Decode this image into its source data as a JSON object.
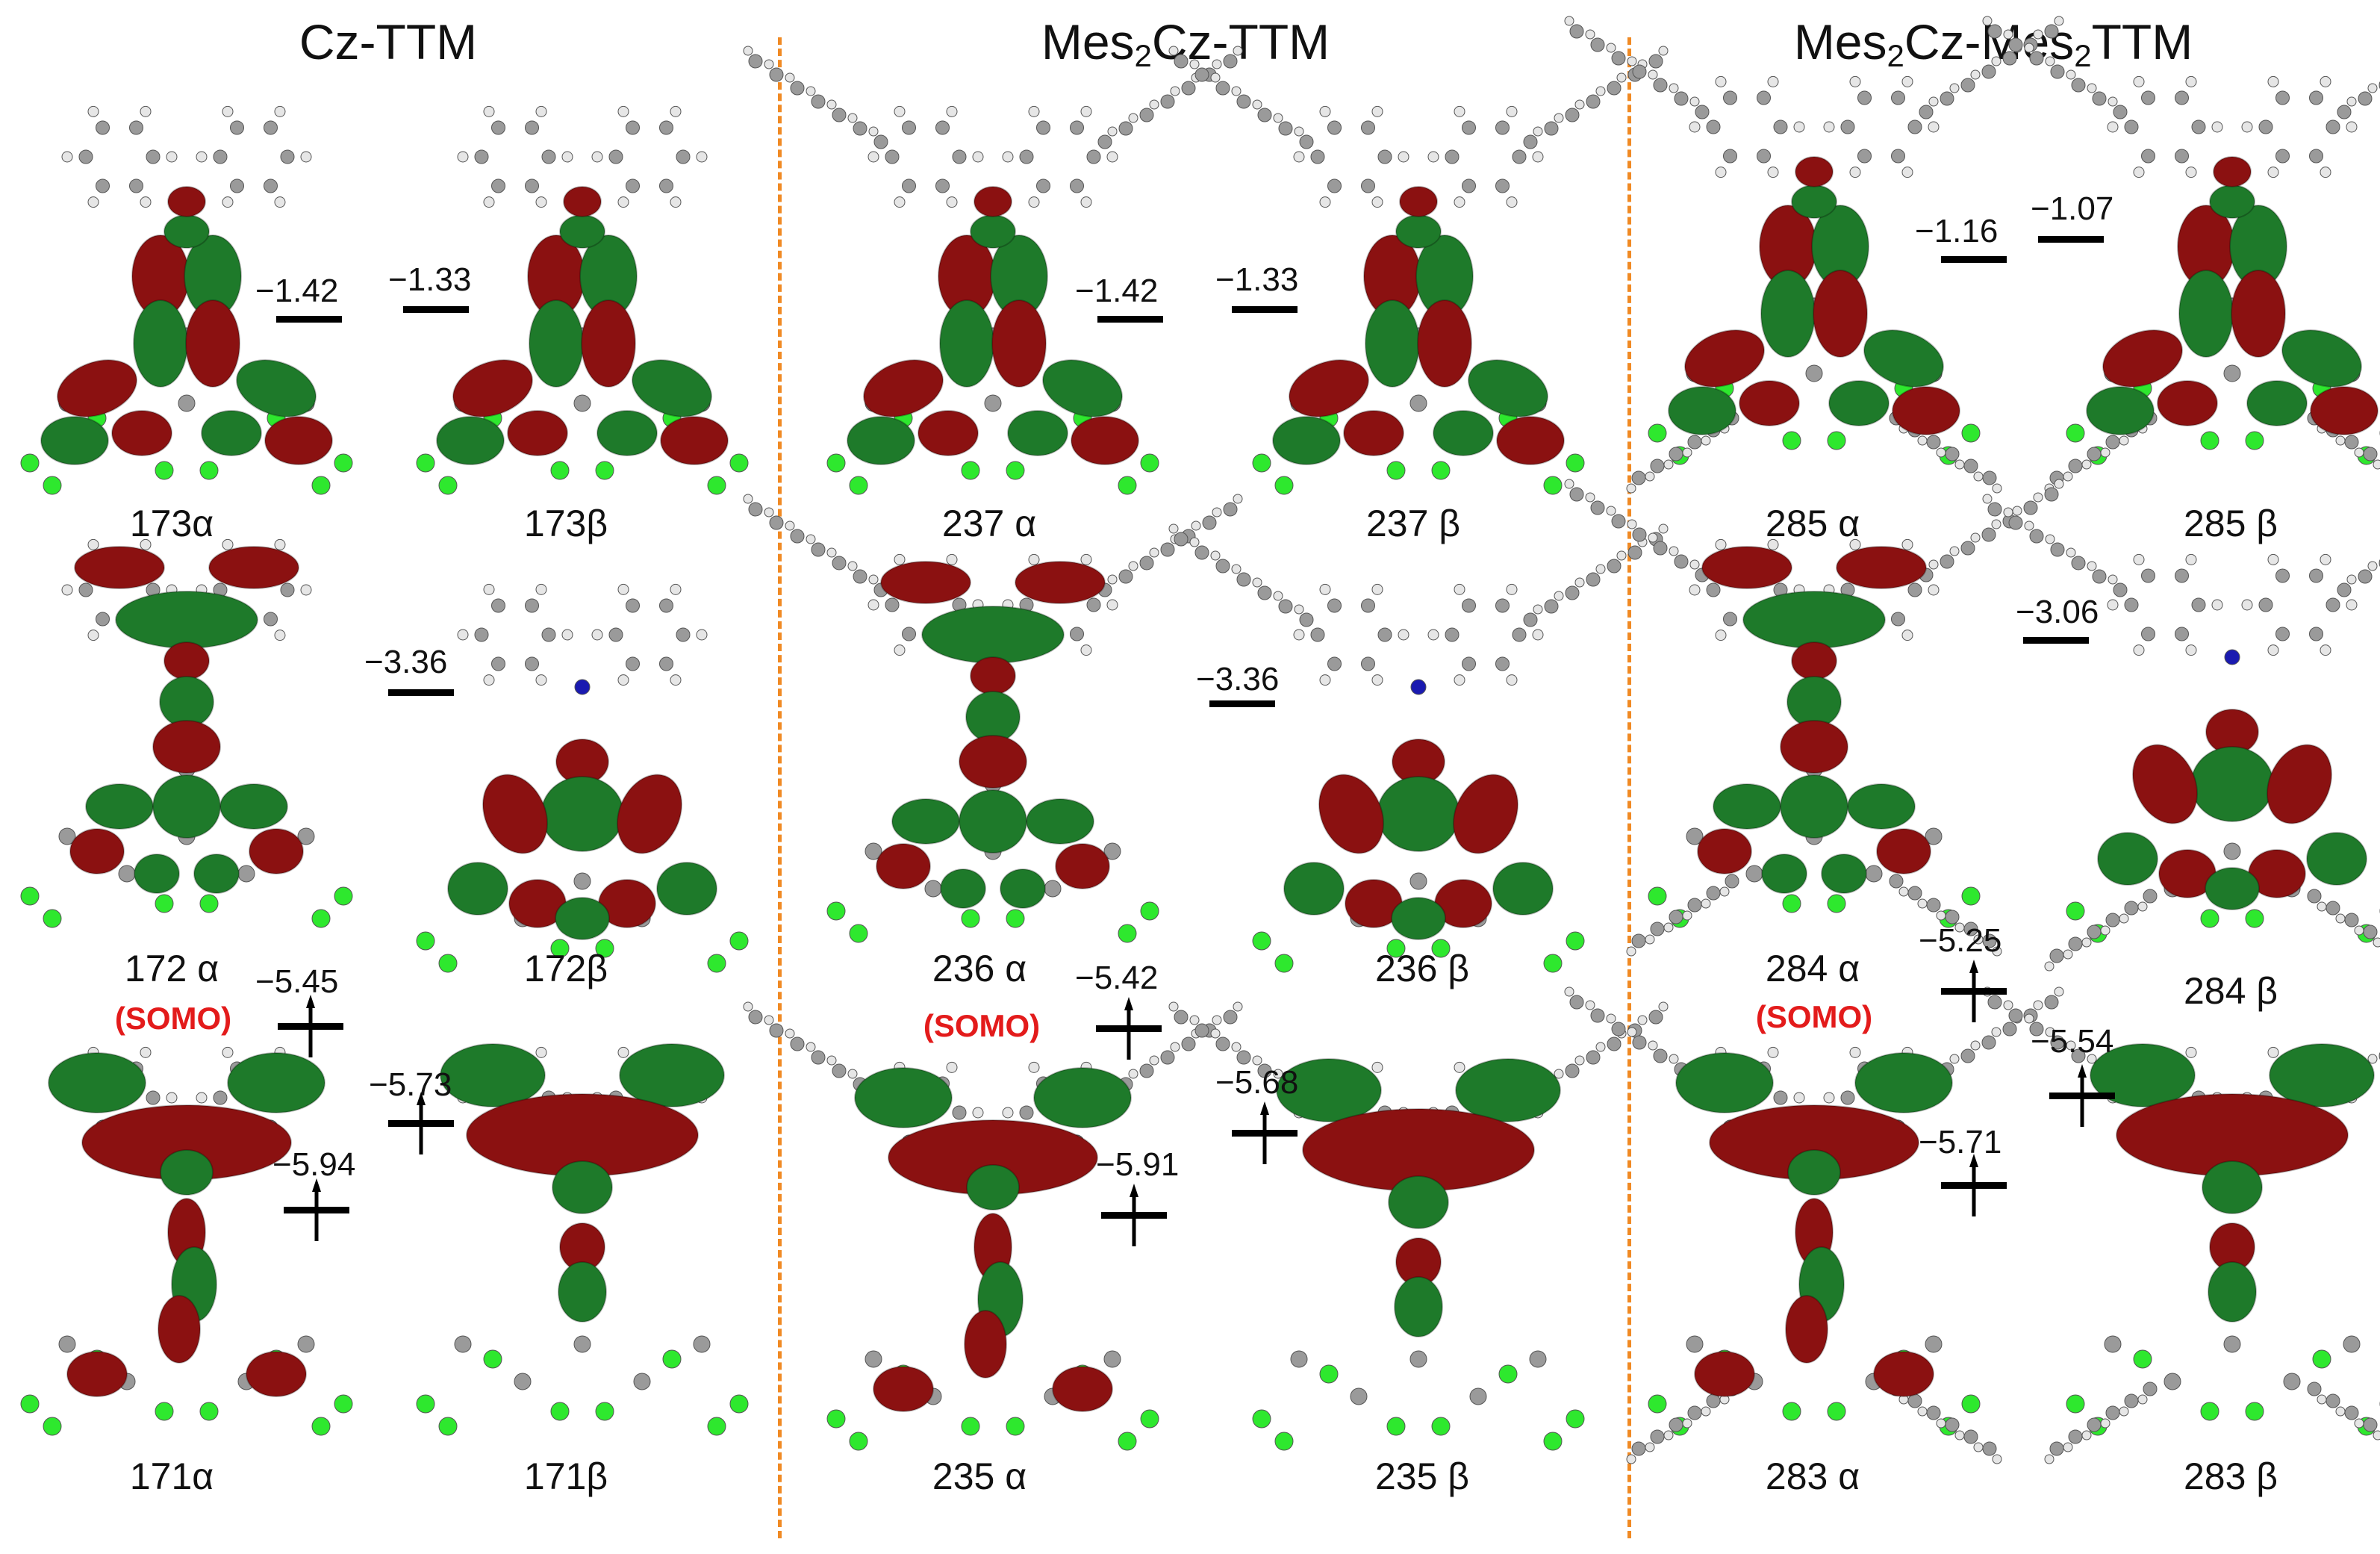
{
  "panels": [
    {
      "title_main": "Cz-TTM",
      "title_pre": "",
      "title_sub": "",
      "title_post": ""
    },
    {
      "title_main": "",
      "title_pre": "Mes",
      "title_sub": "2",
      "title_post": "Cz-TTM"
    },
    {
      "title_main": "",
      "title_pre": "Mes",
      "title_sub": "2",
      "title_post": "Cz-Mes",
      "title_sub2": "2",
      "title_post2": "TTM"
    }
  ],
  "labels": {
    "p1": [
      "173α",
      "173β",
      "172 α",
      "172β",
      "171α",
      "171β"
    ],
    "p2": [
      "237 α",
      "237 β",
      "236 α",
      "236 β",
      "235 α",
      "235 β"
    ],
    "p3": [
      "285 α",
      "285 β",
      "284 α",
      "284 β",
      "283 α",
      "283 β"
    ]
  },
  "somo_label": "(SOMO)",
  "energies": {
    "p1": [
      "−1.42",
      "−1.33",
      "−3.36",
      "−5.45",
      "−5.73",
      "−5.94"
    ],
    "p2": [
      "−1.42",
      "−1.33",
      "−3.36",
      "−5.42",
      "−5.68",
      "−5.91"
    ],
    "p3": [
      "−1.16",
      "−1.07",
      "−3.06",
      "−5.25",
      "−5.54",
      "−5.71"
    ]
  },
  "colors": {
    "lobe_red": "#8b1111",
    "lobe_green": "#1e7a2a",
    "chlorine": "#2ee82e",
    "carbon": "#9a9a9a",
    "hydrogen": "#e6e6e6",
    "nitrogen": "#1a1ab0",
    "somo": "#e31b1b",
    "divider": "#f08a24"
  }
}
